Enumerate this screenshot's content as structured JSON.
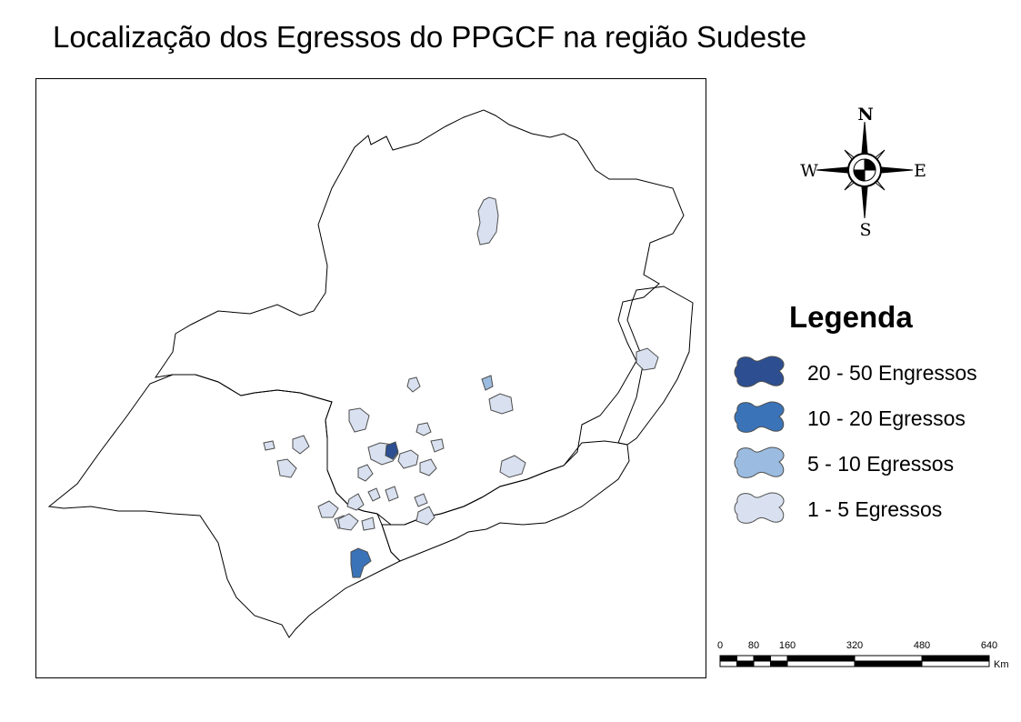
{
  "title": "Localização dos Egressos do PPGCF na região Sudeste",
  "compass": {
    "north": "N",
    "south": "S",
    "east": "E",
    "west": "W"
  },
  "legend": {
    "title": "Legenda",
    "items": [
      {
        "label": "20 - 50 Engressos",
        "color": "#2d4f91"
      },
      {
        "label": "10 - 20 Egressos",
        "color": "#3a73b8"
      },
      {
        "label": "5 - 10 Egressos",
        "color": "#9bbce0"
      },
      {
        "label": "1 - 5 Egressos",
        "color": "#d9e1f0"
      }
    ]
  },
  "scalebar": {
    "ticks": [
      "0",
      "80",
      "160",
      "320",
      "480",
      "640"
    ],
    "unit": "Km"
  },
  "colors": {
    "boundary": "#000000",
    "municipality_outline": "#4d4d4d"
  }
}
